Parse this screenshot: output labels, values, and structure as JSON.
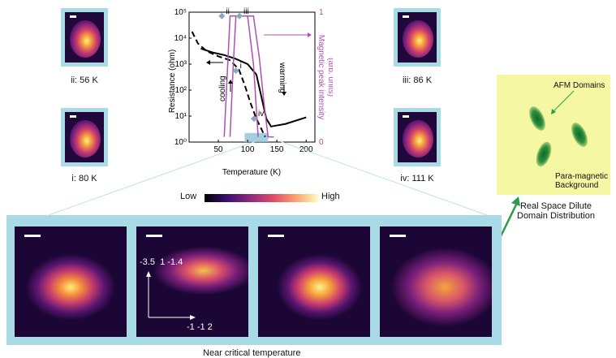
{
  "thumbnails": [
    {
      "label": "ii: 56 K"
    },
    {
      "label": "i: 80 K"
    },
    {
      "label": "iii: 86 K"
    },
    {
      "label": "iv: 111 K"
    }
  ],
  "chart_data": {
    "type": "line",
    "xlabel": "Temperature (K)",
    "ylabel": "Resistance (ohm)",
    "y2label": "Magnetic peak intensity\n(arb. units)",
    "xticks": [
      "50",
      "100",
      "150",
      "200"
    ],
    "xlim": [
      0,
      215
    ],
    "ylim_log": [
      0,
      5
    ],
    "yticks": [
      "10⁰",
      "10¹",
      "10²",
      "10³",
      "10⁴",
      "10⁵"
    ],
    "y2ticks": [
      "0",
      "1"
    ],
    "y2lim": [
      0,
      1
    ],
    "series": [
      {
        "role": "resistance-cooling",
        "style": "dashed",
        "x": [
          5,
          15,
          30,
          50,
          70,
          85,
          95,
          105,
          115,
          130
        ],
        "y": [
          4.25,
          3.8,
          3.5,
          3.3,
          3.15,
          2.8,
          2.2,
          1.5,
          0.9,
          0.2
        ]
      },
      {
        "role": "resistance-warming",
        "style": "solid",
        "x": [
          20,
          40,
          60,
          80,
          100,
          115,
          125,
          132,
          140,
          165,
          200
        ],
        "y": [
          3.6,
          3.45,
          3.35,
          3.2,
          3.0,
          2.6,
          1.6,
          0.9,
          0.6,
          0.7,
          0.95
        ]
      },
      {
        "role": "magnetic-cooling",
        "style": "solid",
        "x": [
          70,
          75,
          80,
          85,
          100,
          110,
          118
        ],
        "y": [
          0.04,
          0.55,
          0.97,
          0.97,
          0.97,
          0.6,
          0.04
        ]
      },
      {
        "role": "magnetic-warming",
        "style": "solid",
        "x": [
          60,
          70,
          90,
          110,
          120,
          128,
          135,
          145
        ],
        "y": [
          0.04,
          0.97,
          0.97,
          0.97,
          0.65,
          0.3,
          0.04,
          0.04
        ]
      }
    ],
    "markers": [
      {
        "label": "ii",
        "x": 56,
        "y2": 0.97
      },
      {
        "label": "iii",
        "x": 86,
        "y2": 0.97
      },
      {
        "label": "i",
        "x": 80,
        "y2": 0.55
      },
      {
        "label": "iv",
        "x": 111,
        "y2": 0.18
      }
    ],
    "annotations": {
      "cooling": "cooling",
      "warming": "warming"
    },
    "colors": {
      "resistance": "#000000",
      "magnetic": "#b04fb4",
      "marker": "#8aa7c0",
      "highlight": "#8fc3d6"
    }
  },
  "colorbar": {
    "low": "Low",
    "high": "High"
  },
  "strip": {
    "caption": "Near critical temperature",
    "axis_top": "-3.5  1 -1.4",
    "axis_right": "-1 -1 2"
  },
  "domains": {
    "afm_label": "AFM Domains",
    "background_label": "Para-magnetic\nBackground",
    "caption": "Real Space Dilute\nDomain Distribution"
  },
  "colors": {
    "frame": "#a9dbe6",
    "arrow": "#2e9b4a",
    "domain_bg": "#f5f7a2"
  }
}
